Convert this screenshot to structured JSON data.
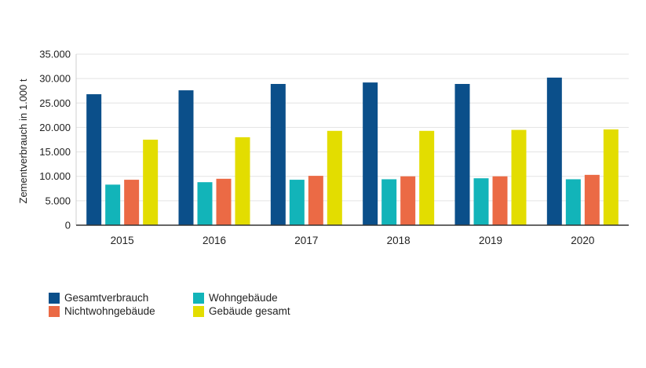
{
  "chart_data": {
    "type": "bar",
    "title": "",
    "xlabel": "",
    "ylabel": "Zementverbrauch in 1.000 t",
    "categories": [
      "2015",
      "2016",
      "2017",
      "2018",
      "2019",
      "2020"
    ],
    "ylim": [
      0,
      35000
    ],
    "yticks": [
      0,
      5000,
      10000,
      15000,
      20000,
      25000,
      30000,
      35000
    ],
    "ytick_labels": [
      "0",
      "5.000",
      "10.000",
      "15.000",
      "20.000",
      "25.000",
      "30.000",
      "35.000"
    ],
    "grid": true,
    "legend_position": "bottom-left",
    "series": [
      {
        "name": "Gesamtverbrauch",
        "color": "#0b4f8a",
        "values": [
          26800,
          27600,
          28900,
          29200,
          28900,
          30200
        ]
      },
      {
        "name": "Wohngebäude",
        "color": "#12b4b9",
        "values": [
          8300,
          8800,
          9300,
          9400,
          9600,
          9400
        ]
      },
      {
        "name": "Nichtwohngebäude",
        "color": "#eb6a45",
        "values": [
          9300,
          9500,
          10100,
          10000,
          10000,
          10300
        ]
      },
      {
        "name": "Gebäude gesamt",
        "color": "#e3dd00",
        "values": [
          17500,
          18000,
          19300,
          19300,
          19500,
          19600
        ]
      }
    ]
  }
}
